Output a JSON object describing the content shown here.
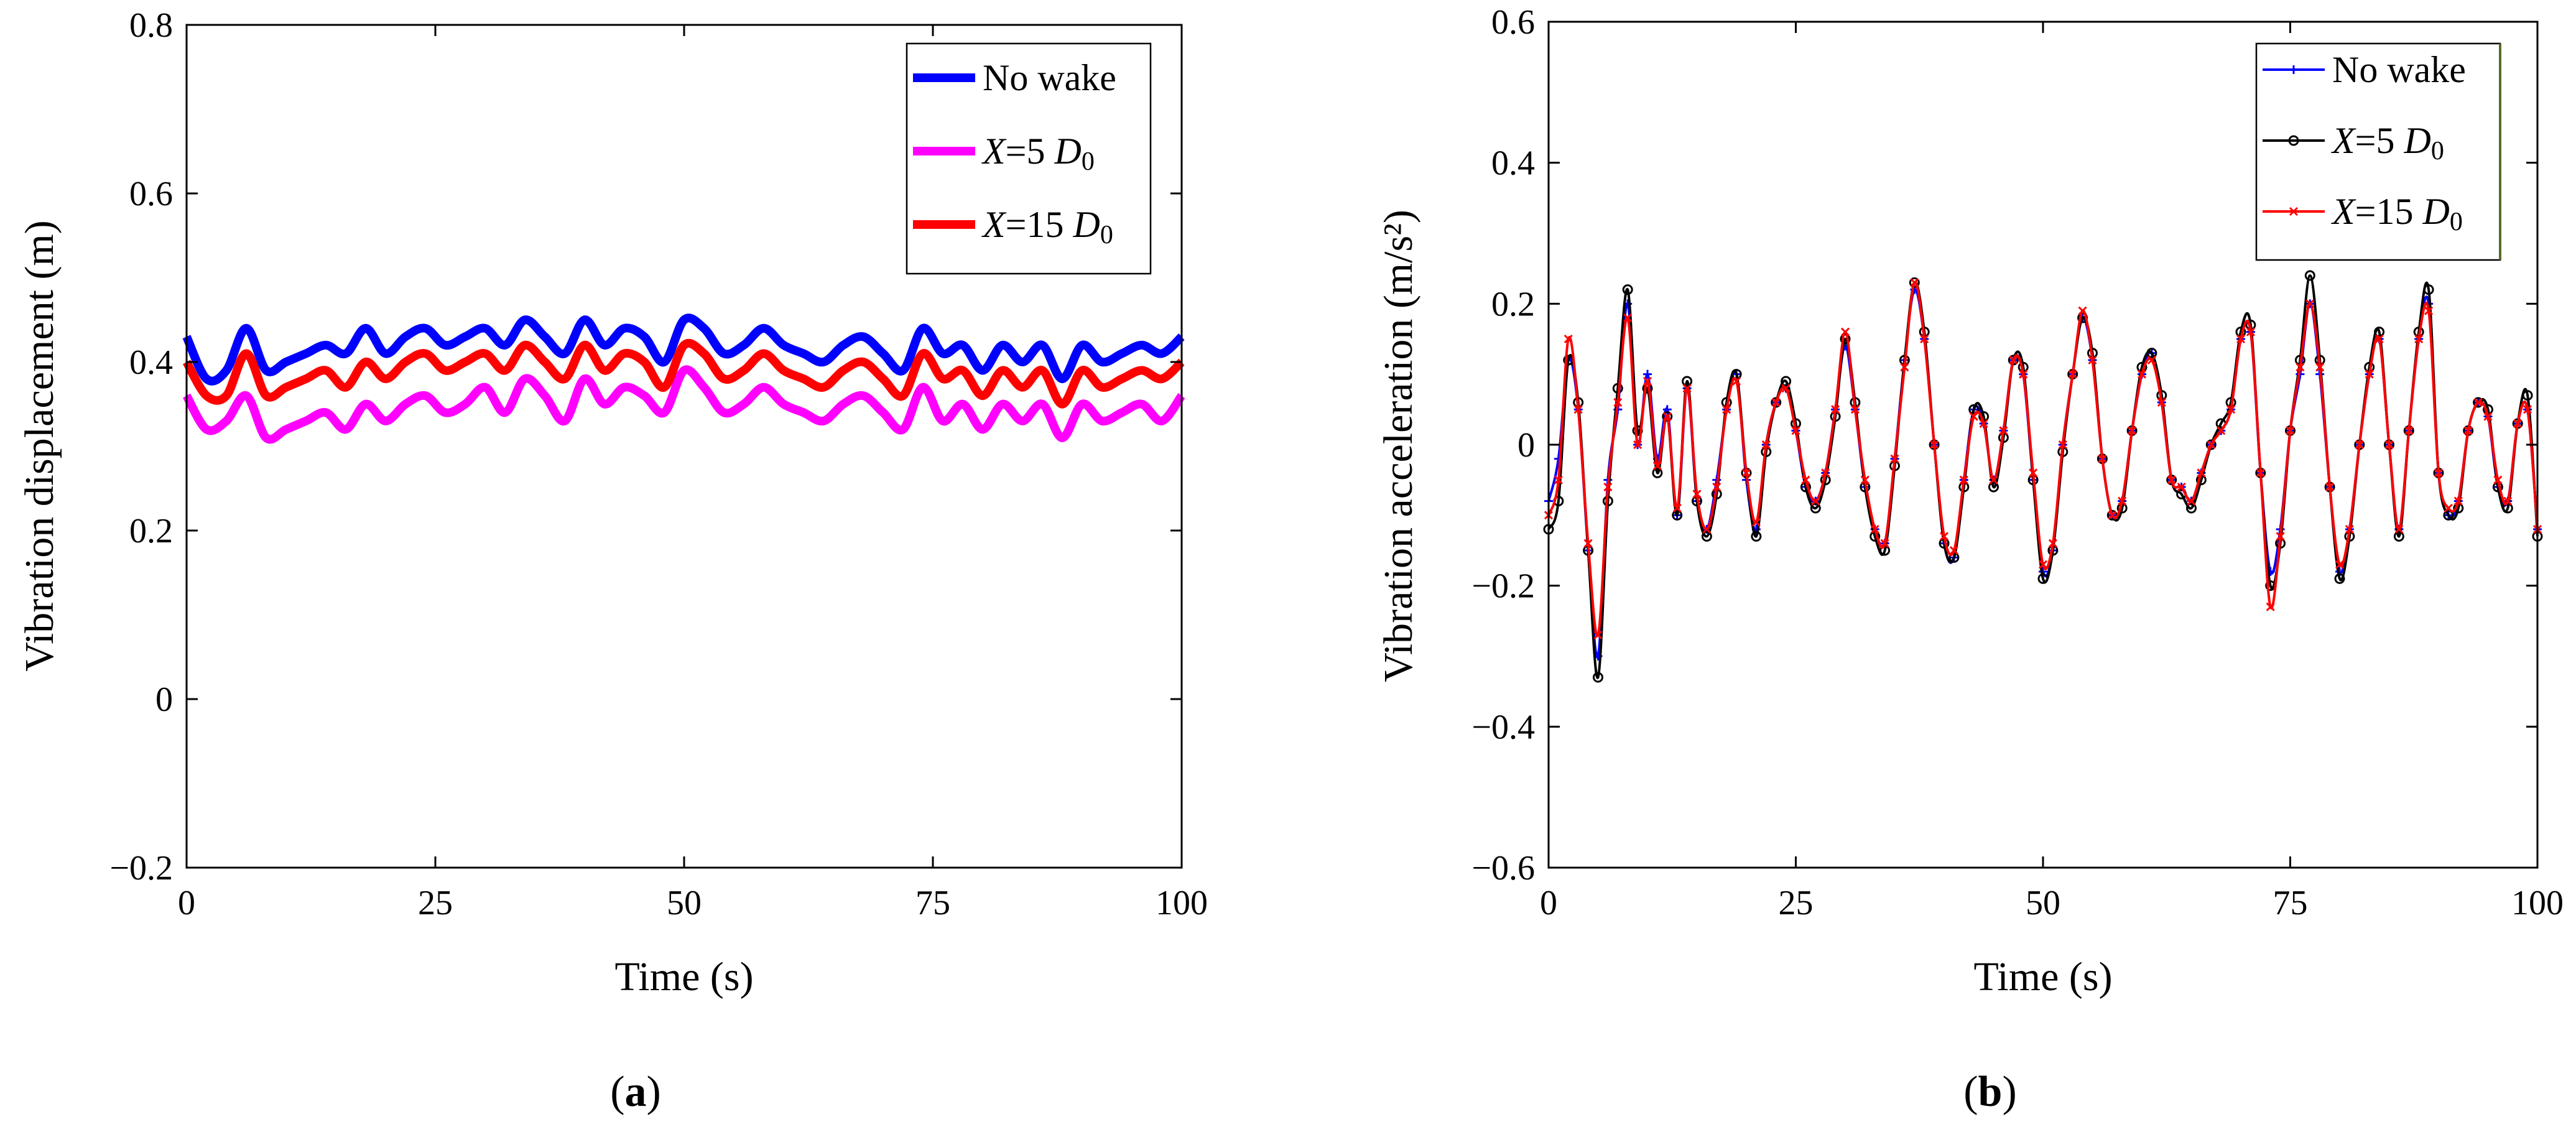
{
  "chart_data": [
    {
      "type": "line",
      "panel_label": "a",
      "xlabel": "Time (s)",
      "ylabel": "Vibration displacement (m)",
      "xlim": [
        0,
        100
      ],
      "ylim": [
        -0.2,
        0.8
      ],
      "xticks": [
        0,
        25,
        50,
        75,
        100
      ],
      "xtick_labels": [
        "0",
        "25",
        "50",
        "75",
        "100"
      ],
      "yticks": [
        -0.2,
        0,
        0.2,
        0.4,
        0.6,
        0.8
      ],
      "ytick_labels": [
        "−0.2",
        "0",
        "0.2",
        "0.4",
        "0.6",
        "0.8"
      ],
      "grid": false,
      "legend_position": "top-right",
      "x": [
        0,
        2,
        4,
        6,
        8,
        10,
        12,
        14,
        16,
        18,
        20,
        22,
        24,
        26,
        28,
        30,
        32,
        34,
        36,
        38,
        40,
        42,
        44,
        46,
        48,
        50,
        52,
        54,
        56,
        58,
        60,
        62,
        64,
        66,
        68,
        70,
        72,
        74,
        76,
        78,
        80,
        82,
        84,
        86,
        88,
        90,
        92,
        94,
        96,
        98,
        100
      ],
      "series": [
        {
          "name": "No wake",
          "color": "#0000ff",
          "values": [
            0.43,
            0.38,
            0.39,
            0.44,
            0.39,
            0.4,
            0.41,
            0.42,
            0.41,
            0.44,
            0.41,
            0.43,
            0.44,
            0.42,
            0.43,
            0.44,
            0.42,
            0.45,
            0.43,
            0.41,
            0.45,
            0.42,
            0.44,
            0.43,
            0.4,
            0.45,
            0.44,
            0.41,
            0.42,
            0.44,
            0.42,
            0.41,
            0.4,
            0.42,
            0.43,
            0.41,
            0.39,
            0.44,
            0.41,
            0.42,
            0.39,
            0.42,
            0.4,
            0.42,
            0.38,
            0.42,
            0.4,
            0.41,
            0.42,
            0.41,
            0.43
          ]
        },
        {
          "name": "X=5 D0",
          "color": "#ff00ff",
          "values": [
            0.36,
            0.32,
            0.33,
            0.36,
            0.31,
            0.32,
            0.33,
            0.34,
            0.32,
            0.35,
            0.33,
            0.35,
            0.36,
            0.34,
            0.35,
            0.37,
            0.34,
            0.38,
            0.36,
            0.33,
            0.38,
            0.35,
            0.37,
            0.36,
            0.34,
            0.39,
            0.37,
            0.34,
            0.35,
            0.37,
            0.35,
            0.34,
            0.33,
            0.35,
            0.36,
            0.34,
            0.32,
            0.37,
            0.33,
            0.35,
            0.32,
            0.35,
            0.33,
            0.35,
            0.31,
            0.35,
            0.33,
            0.34,
            0.35,
            0.33,
            0.36
          ]
        },
        {
          "name": "X=15 D0",
          "color": "#ff0000",
          "values": [
            0.4,
            0.36,
            0.36,
            0.41,
            0.36,
            0.37,
            0.38,
            0.39,
            0.37,
            0.4,
            0.38,
            0.4,
            0.41,
            0.39,
            0.4,
            0.41,
            0.39,
            0.42,
            0.4,
            0.38,
            0.42,
            0.39,
            0.41,
            0.4,
            0.37,
            0.42,
            0.41,
            0.38,
            0.39,
            0.41,
            0.39,
            0.38,
            0.37,
            0.39,
            0.4,
            0.38,
            0.36,
            0.41,
            0.38,
            0.39,
            0.36,
            0.39,
            0.37,
            0.39,
            0.35,
            0.39,
            0.37,
            0.38,
            0.39,
            0.38,
            0.4
          ]
        }
      ]
    },
    {
      "type": "line",
      "panel_label": "b",
      "xlabel": "Time (s)",
      "ylabel": "Vibration acceleration (m/s²)",
      "xlim": [
        0,
        100
      ],
      "ylim": [
        -0.6,
        0.6
      ],
      "xticks": [
        0,
        25,
        50,
        75,
        100
      ],
      "xtick_labels": [
        "0",
        "25",
        "50",
        "75",
        "100"
      ],
      "yticks": [
        -0.6,
        -0.4,
        -0.2,
        0,
        0.2,
        0.4,
        0.6
      ],
      "ytick_labels": [
        "−0.6",
        "−0.4",
        "−0.2",
        "0",
        "0.2",
        "0.4",
        "0.6"
      ],
      "grid": false,
      "legend_position": "top-right",
      "x": [
        0,
        1,
        2,
        3,
        4,
        5,
        6,
        7,
        8,
        9,
        10,
        11,
        12,
        13,
        14,
        15,
        16,
        17,
        18,
        19,
        20,
        21,
        22,
        23,
        24,
        25,
        26,
        27,
        28,
        29,
        30,
        31,
        32,
        33,
        34,
        35,
        36,
        37,
        38,
        39,
        40,
        41,
        42,
        43,
        44,
        45,
        46,
        47,
        48,
        49,
        50,
        51,
        52,
        53,
        54,
        55,
        56,
        57,
        58,
        59,
        60,
        61,
        62,
        63,
        64,
        65,
        66,
        67,
        68,
        69,
        70,
        71,
        72,
        73,
        74,
        75,
        76,
        77,
        78,
        79,
        80,
        81,
        82,
        83,
        84,
        85,
        86,
        87,
        88,
        89,
        90,
        91,
        92,
        93,
        94,
        95,
        96,
        97,
        98,
        99,
        100
      ],
      "series": [
        {
          "name": "No wake",
          "color": "#0000ff",
          "marker": "plus",
          "values": [
            -0.08,
            -0.02,
            0.12,
            0.05,
            -0.15,
            -0.3,
            -0.05,
            0.05,
            0.2,
            0.0,
            0.1,
            -0.02,
            0.05,
            -0.1,
            0.08,
            -0.08,
            -0.12,
            -0.05,
            0.05,
            0.1,
            -0.05,
            -0.12,
            0.0,
            0.06,
            0.08,
            0.02,
            -0.06,
            -0.08,
            -0.04,
            0.05,
            0.14,
            0.05,
            -0.06,
            -0.12,
            -0.14,
            -0.02,
            0.12,
            0.22,
            0.15,
            0.0,
            -0.14,
            -0.16,
            -0.05,
            0.05,
            0.03,
            -0.05,
            0.02,
            0.12,
            0.1,
            -0.05,
            -0.18,
            -0.15,
            0.0,
            0.1,
            0.18,
            0.12,
            -0.02,
            -0.1,
            -0.08,
            0.02,
            0.1,
            0.13,
            0.06,
            -0.05,
            -0.06,
            -0.08,
            -0.04,
            0.0,
            0.02,
            0.05,
            0.15,
            0.16,
            -0.04,
            -0.18,
            -0.12,
            0.02,
            0.1,
            0.2,
            0.1,
            -0.06,
            -0.18,
            -0.12,
            0.0,
            0.1,
            0.15,
            0.0,
            -0.12,
            0.02,
            0.15,
            0.2,
            -0.04,
            -0.1,
            -0.08,
            0.02,
            0.06,
            0.04,
            -0.06,
            -0.08,
            0.03,
            0.05,
            -0.12
          ]
        },
        {
          "name": "X=5 D0",
          "color": "#000000",
          "marker": "circle",
          "values": [
            -0.12,
            -0.08,
            0.12,
            0.06,
            -0.15,
            -0.33,
            -0.08,
            0.08,
            0.22,
            0.02,
            0.08,
            -0.04,
            0.04,
            -0.1,
            0.09,
            -0.08,
            -0.13,
            -0.07,
            0.06,
            0.1,
            -0.04,
            -0.13,
            -0.01,
            0.06,
            0.09,
            0.03,
            -0.06,
            -0.09,
            -0.05,
            0.04,
            0.15,
            0.06,
            -0.06,
            -0.13,
            -0.15,
            -0.03,
            0.12,
            0.23,
            0.16,
            0.0,
            -0.14,
            -0.16,
            -0.06,
            0.05,
            0.04,
            -0.06,
            0.01,
            0.12,
            0.11,
            -0.05,
            -0.19,
            -0.15,
            -0.01,
            0.1,
            0.18,
            0.13,
            -0.02,
            -0.1,
            -0.09,
            0.02,
            0.11,
            0.13,
            0.07,
            -0.05,
            -0.07,
            -0.09,
            -0.05,
            0.0,
            0.03,
            0.06,
            0.16,
            0.17,
            -0.04,
            -0.2,
            -0.14,
            0.02,
            0.12,
            0.24,
            0.12,
            -0.06,
            -0.19,
            -0.13,
            0.0,
            0.11,
            0.16,
            0.0,
            -0.13,
            0.02,
            0.16,
            0.22,
            -0.04,
            -0.1,
            -0.09,
            0.02,
            0.06,
            0.05,
            -0.06,
            -0.09,
            0.03,
            0.07,
            -0.13
          ]
        },
        {
          "name": "X=15 D0",
          "color": "#ff0000",
          "marker": "cross",
          "values": [
            -0.1,
            -0.05,
            0.15,
            0.05,
            -0.14,
            -0.27,
            -0.06,
            0.06,
            0.18,
            0.0,
            0.09,
            -0.03,
            0.04,
            -0.09,
            0.08,
            -0.07,
            -0.12,
            -0.06,
            0.05,
            0.09,
            -0.04,
            -0.11,
            0.0,
            0.06,
            0.08,
            0.02,
            -0.05,
            -0.08,
            -0.04,
            0.05,
            0.16,
            0.05,
            -0.05,
            -0.12,
            -0.14,
            -0.02,
            0.11,
            0.23,
            0.15,
            0.0,
            -0.13,
            -0.15,
            -0.05,
            0.04,
            0.03,
            -0.05,
            0.02,
            0.12,
            0.1,
            -0.04,
            -0.17,
            -0.14,
            0.0,
            0.1,
            0.19,
            0.12,
            -0.02,
            -0.1,
            -0.08,
            0.02,
            0.1,
            0.12,
            0.06,
            -0.05,
            -0.06,
            -0.08,
            -0.04,
            0.0,
            0.02,
            0.05,
            0.15,
            0.16,
            -0.04,
            -0.23,
            -0.13,
            0.02,
            0.11,
            0.2,
            0.11,
            -0.06,
            -0.17,
            -0.12,
            0.0,
            0.1,
            0.15,
            0.0,
            -0.12,
            0.02,
            0.15,
            0.19,
            -0.04,
            -0.09,
            -0.08,
            0.02,
            0.06,
            0.04,
            -0.05,
            -0.08,
            0.03,
            0.05,
            -0.12
          ]
        }
      ]
    }
  ]
}
